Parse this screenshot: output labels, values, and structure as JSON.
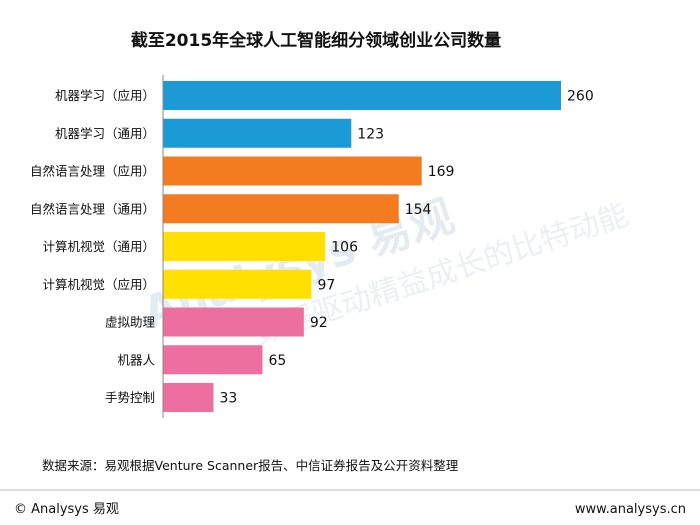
{
  "chart_data": {
    "type": "bar",
    "orientation": "horizontal",
    "title": "截至2015年全球人工智能细分领域创业公司数量",
    "categories": [
      "机器学习（应用）",
      "机器学习（通用）",
      "自然语言处理（应用）",
      "自然语言处理（通用）",
      "计算机视觉（通用）",
      "计算机视觉（应用）",
      "虚拟助理",
      "机器人",
      "手势控制"
    ],
    "values": [
      260,
      123,
      169,
      154,
      106,
      97,
      92,
      65,
      33
    ],
    "bar_colors": [
      "#1b9ad6",
      "#1b9ad6",
      "#f47b20",
      "#f47b20",
      "#ffe000",
      "#ffe000",
      "#ec6fa0",
      "#ec6fa0",
      "#ec6fa0"
    ],
    "xlabel": "",
    "ylabel": "",
    "xlim": [
      0,
      260
    ]
  },
  "source": "数据来源：易观根据Venture Scanner报告、中信证券报告及公开资料整理",
  "footer": {
    "copyright": "© Analysys 易观",
    "website": "www.analysys.cn"
  },
  "watermark": {
    "brand": "Analysys 易观",
    "slogan": "数据驱动精益成长的比特动能"
  },
  "colors": {
    "axis": "#888888"
  }
}
